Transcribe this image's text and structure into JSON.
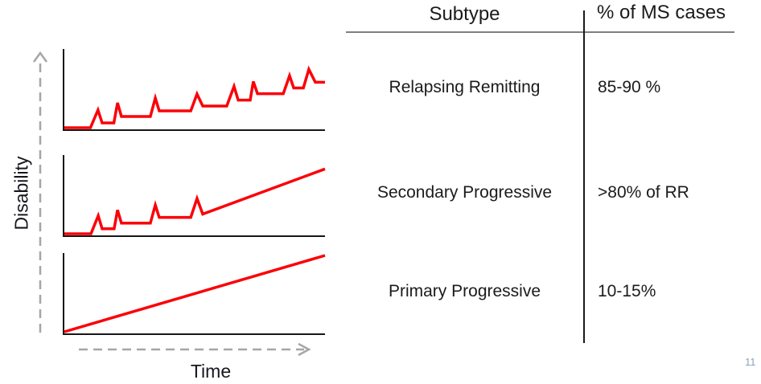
{
  "figure": {
    "y_axis_label": "Disability",
    "x_axis_label": "Time"
  },
  "table": {
    "headers": [
      "Subtype",
      "% of MS cases"
    ],
    "rows": [
      {
        "subtype": "Relapsing Remitting",
        "value": "85-90 %"
      },
      {
        "subtype": "Secondary Progressive",
        "value": ">80% of RR"
      },
      {
        "subtype": "Primary Progressive",
        "value": "10-15%"
      }
    ]
  },
  "page_number": "11",
  "colors": {
    "line_red": "#fb0007",
    "axis_black": "#161616",
    "arrow_gray": "#a6a6a6",
    "header_rule_gray": "#7f7f7f",
    "text_black": "#16161d",
    "page_number_gray": "#8da3bd"
  },
  "chart_data": [
    {
      "type": "line",
      "title": "Relapsing Remitting disease course",
      "xlabel": "Time",
      "ylabel": "Disability",
      "x_range": [
        0,
        100
      ],
      "y_range": [
        0,
        100
      ],
      "grid": false,
      "ticks": "none (qualitative sketch)",
      "series": [
        {
          "name": "Relapsing Remitting",
          "color": "#fb0007"
        }
      ],
      "points": [
        [
          0,
          2
        ],
        [
          10,
          2
        ],
        [
          12.9,
          24
        ],
        [
          14.5,
          8
        ],
        [
          19,
          8
        ],
        [
          20.4,
          33
        ],
        [
          21.9,
          16
        ],
        [
          33,
          16
        ],
        [
          34.9,
          39
        ],
        [
          36.4,
          23
        ],
        [
          48.5,
          23
        ],
        [
          50.9,
          44
        ],
        [
          53.1,
          29
        ],
        [
          62.3,
          29
        ],
        [
          65.1,
          53.5
        ],
        [
          66.7,
          36.4
        ],
        [
          71.3,
          36.4
        ],
        [
          72.5,
          59.6
        ],
        [
          74.1,
          44.4
        ],
        [
          84,
          44.4
        ],
        [
          86.4,
          66.7
        ],
        [
          88,
          51.5
        ],
        [
          91.7,
          51.5
        ],
        [
          93.8,
          74.7
        ],
        [
          96.3,
          58.6
        ],
        [
          100,
          58.6
        ]
      ]
    },
    {
      "type": "line",
      "title": "Secondary Progressive disease course",
      "xlabel": "Time",
      "ylabel": "Disability",
      "x_range": [
        0,
        100
      ],
      "y_range": [
        0,
        100
      ],
      "grid": false,
      "ticks": "none (qualitative sketch)",
      "series": [
        {
          "name": "Secondary Progressive",
          "color": "#fb0007"
        }
      ],
      "points": [
        [
          0,
          2
        ],
        [
          10.2,
          2
        ],
        [
          13,
          24.5
        ],
        [
          14.5,
          8.2
        ],
        [
          19.1,
          8.2
        ],
        [
          20.4,
          31.6
        ],
        [
          21.9,
          15.3
        ],
        [
          33,
          15.3
        ],
        [
          34.9,
          37.8
        ],
        [
          36.4,
          22.4
        ],
        [
          48.5,
          22.4
        ],
        [
          50.9,
          45.9
        ],
        [
          53.1,
          26.5
        ],
        [
          100,
          82.7
        ]
      ]
    },
    {
      "type": "line",
      "title": "Primary Progressive disease course",
      "xlabel": "Time",
      "ylabel": "Disability",
      "x_range": [
        0,
        100
      ],
      "y_range": [
        0,
        100
      ],
      "grid": false,
      "ticks": "none (qualitative sketch)",
      "series": [
        {
          "name": "Primary Progressive",
          "color": "#fb0007"
        }
      ],
      "points": [
        [
          0,
          2
        ],
        [
          100,
          97
        ]
      ]
    }
  ]
}
